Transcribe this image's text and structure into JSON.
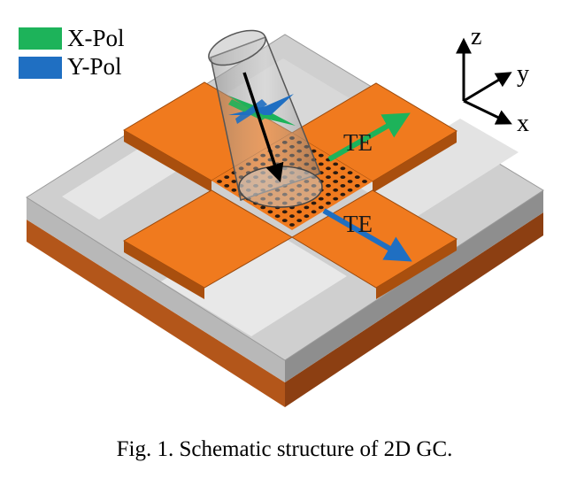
{
  "legend": {
    "items": [
      {
        "label": "X-Pol",
        "color": "#1db35a"
      },
      {
        "label": "Y-Pol",
        "color": "#1f6fc2"
      }
    ]
  },
  "axes": {
    "z": "z",
    "y": "y",
    "x": "x"
  },
  "arrows": {
    "te_top": "TE",
    "te_bottom": "TE"
  },
  "caption": "Fig. 1. Schematic structure of 2D GC.",
  "colors": {
    "waveguide": "#f07a1e",
    "substrate": "#c8621c",
    "oxide_top": "#cfcfcf",
    "fiber": "#9a9a9a",
    "x_pol": "#1db35a",
    "y_pol": "#1f6fc2"
  },
  "icons": [
    "fiber-icon",
    "grating-hole-array",
    "axis-triad-icon"
  ]
}
